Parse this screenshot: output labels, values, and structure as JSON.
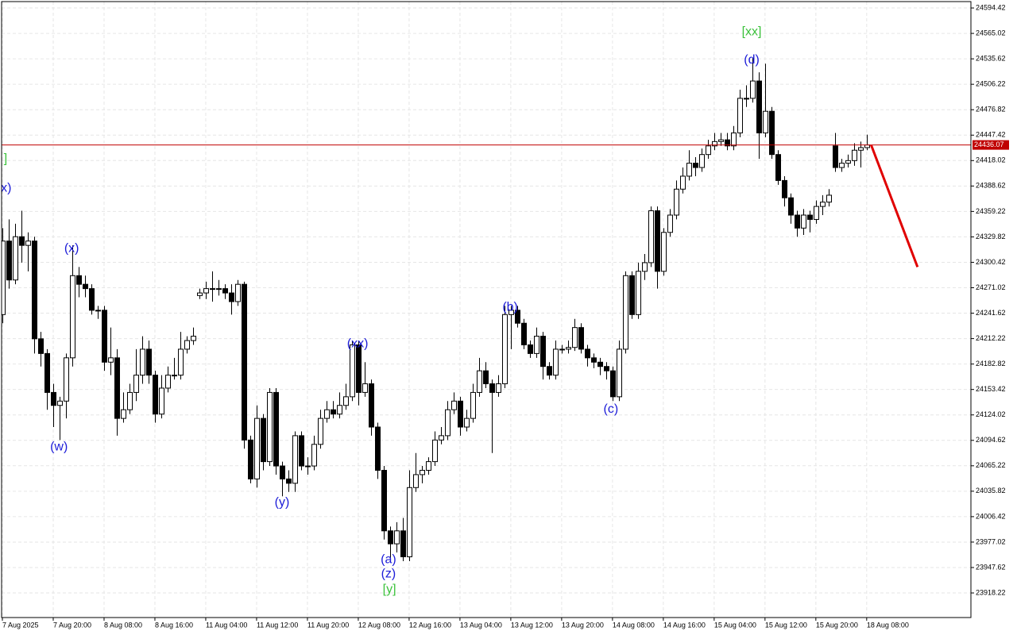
{
  "chart_data": {
    "type": "candlestick",
    "xlim": [
      -0.125,
      152.4
    ],
    "xticks": [
      {
        "value": 0,
        "label": "7 Aug 2025"
      },
      {
        "value": 8,
        "label": "7 Aug 20:00"
      },
      {
        "value": 16,
        "label": "8 Aug 08:00"
      },
      {
        "value": 24,
        "label": "8 Aug 16:00"
      },
      {
        "value": 32,
        "label": "11 Aug 04:00"
      },
      {
        "value": 40,
        "label": "11 Aug 12:00"
      },
      {
        "value": 48,
        "label": "11 Aug 20:00"
      },
      {
        "value": 56,
        "label": "12 Aug 08:00"
      },
      {
        "value": 64,
        "label": "12 Aug 16:00"
      },
      {
        "value": 72,
        "label": "13 Aug 04:00"
      },
      {
        "value": 80,
        "label": "13 Aug 12:00"
      },
      {
        "value": 88,
        "label": "13 Aug 20:00"
      },
      {
        "value": 96,
        "label": "14 Aug 08:00"
      },
      {
        "value": 104,
        "label": "14 Aug 16:00"
      },
      {
        "value": 112,
        "label": "15 Aug 04:00"
      },
      {
        "value": 120,
        "label": "15 Aug 12:00"
      },
      {
        "value": 128,
        "label": "15 Aug 20:00"
      },
      {
        "value": 136,
        "label": "18 Aug 08:00"
      }
    ],
    "ylim": [
      23889.8,
      24601.8
    ],
    "yticks": [
      24594.42,
      24565.02,
      24535.62,
      24506.22,
      24476.82,
      24447.42,
      24418.02,
      24388.62,
      24359.22,
      24329.82,
      24300.42,
      24271.02,
      24241.62,
      24212.22,
      24182.82,
      24153.42,
      24124.02,
      24094.62,
      24065.22,
      24035.82,
      24006.42,
      23977.02,
      23947.62,
      23918.22
    ],
    "grid": true,
    "up_color": "#ffffff",
    "down_color": "#000000",
    "open": [
      24240,
      24325,
      24280,
      24330,
      24320,
      24325,
      24212,
      24195,
      24150,
      24135,
      24140,
      24190,
      24285,
      24275,
      24270,
      24245,
      24245,
      24185,
      24190,
      24120,
      24130,
      24150,
      24170,
      24200,
      24170,
      24125,
      24155,
      24170,
      24170,
      24200,
      24210,
      24262,
      24265,
      24270,
      24270,
      24270,
      24265,
      24255,
      24275,
      24095,
      24050,
      24120,
      24070,
      24150,
      24065,
      24050,
      24045,
      24100,
      24065,
      24065,
      24090,
      24120,
      24130,
      24125,
      24135,
      24145,
      24205,
      24150,
      24160,
      24110,
      24060,
      23990,
      23975,
      23990,
      23960,
      24040,
      24055,
      24060,
      24070,
      24095,
      24100,
      24130,
      24140,
      24110,
      24120,
      24150,
      24175,
      24160,
      24150,
      24160,
      24240,
      24245,
      24230,
      24205,
      24195,
      24215,
      24180,
      24170,
      24200,
      24200,
      24202,
      24225,
      24200,
      24190,
      24185,
      24180,
      24175,
      24145,
      24200,
      24285,
      24240,
      24290,
      24300,
      24360,
      24290,
      24335,
      24355,
      24385,
      24400,
      24415,
      24410,
      24425,
      24435,
      24440,
      24442,
      24435,
      24450,
      24490,
      24490,
      24510,
      24450,
      24475,
      24425,
      24395,
      24375,
      24355,
      24340,
      24355,
      24350,
      24365,
      24370,
      24435,
      24410,
      24415,
      24418,
      24430,
      24433
    ],
    "high": [
      24340,
      24350,
      24345,
      24360,
      24335,
      24330,
      24220,
      24200,
      24160,
      24145,
      24195,
      24320,
      24295,
      24285,
      24275,
      24250,
      24250,
      24225,
      24200,
      24150,
      24160,
      24200,
      24215,
      24210,
      24175,
      24170,
      24180,
      24190,
      24220,
      24215,
      24225,
      24270,
      24278,
      24290,
      24280,
      24275,
      24275,
      24280,
      24278,
      24100,
      24135,
      24125,
      24155,
      24155,
      24070,
      24060,
      24105,
      24105,
      24075,
      24100,
      24130,
      24140,
      24140,
      24150,
      24160,
      24210,
      24210,
      24185,
      24165,
      24115,
      24065,
      23995,
      24000,
      24005,
      24060,
      24080,
      24065,
      24075,
      24105,
      24110,
      24140,
      24150,
      24145,
      24130,
      24160,
      24190,
      24185,
      24165,
      24170,
      24250,
      24250,
      24250,
      24235,
      24210,
      24225,
      24220,
      24185,
      24210,
      24205,
      24210,
      24235,
      24230,
      24205,
      24195,
      24190,
      24185,
      24180,
      24210,
      24290,
      24290,
      24300,
      24310,
      24365,
      24365,
      24340,
      24362,
      24395,
      24410,
      24430,
      24422,
      24432,
      24442,
      24450,
      24450,
      24450,
      24458,
      24500,
      24505,
      24537,
      24520,
      24530,
      24480,
      24430,
      24400,
      24380,
      24360,
      24362,
      24360,
      24372,
      24378,
      24385,
      24450,
      24420,
      24425,
      24438,
      24440,
      24448
    ],
    "low": [
      24230,
      24270,
      24275,
      24300,
      24290,
      24195,
      24180,
      24130,
      24110,
      24095,
      24120,
      24180,
      24260,
      24260,
      24240,
      24235,
      24175,
      24170,
      24100,
      24115,
      24125,
      24140,
      24160,
      24160,
      24115,
      24120,
      24150,
      24165,
      24165,
      24195,
      24205,
      24258,
      24258,
      24255,
      24262,
      24258,
      24240,
      24250,
      24085,
      24045,
      24040,
      24060,
      24065,
      24055,
      24030,
      24035,
      24035,
      24060,
      24055,
      24060,
      24085,
      24115,
      24120,
      24120,
      24130,
      24140,
      24135,
      24145,
      24100,
      24050,
      23980,
      23955,
      23965,
      23955,
      23955,
      24035,
      24045,
      24055,
      24065,
      24090,
      24095,
      24125,
      24100,
      24105,
      24115,
      24145,
      24155,
      24080,
      24145,
      24155,
      24200,
      24225,
      24200,
      24190,
      24190,
      24165,
      24165,
      24165,
      24195,
      24195,
      24198,
      24195,
      24180,
      24178,
      24170,
      24165,
      24140,
      24140,
      24195,
      24235,
      24235,
      24280,
      24295,
      24270,
      24285,
      24330,
      24350,
      24380,
      24395,
      24400,
      24405,
      24420,
      24430,
      24435,
      24430,
      24430,
      24445,
      24480,
      24485,
      24420,
      24445,
      24420,
      24390,
      24365,
      24345,
      24330,
      24332,
      24335,
      24345,
      24355,
      24365,
      24405,
      24405,
      24410,
      24412,
      24410,
      24430
    ],
    "close": [
      24325,
      24280,
      24330,
      24320,
      24325,
      24212,
      24195,
      24150,
      24135,
      24140,
      24190,
      24285,
      24275,
      24270,
      24245,
      24245,
      24185,
      24190,
      24120,
      24130,
      24150,
      24170,
      24200,
      24170,
      24125,
      24155,
      24170,
      24170,
      24200,
      24210,
      24215,
      24265,
      24270,
      24270,
      24270,
      24265,
      24255,
      24275,
      24095,
      24050,
      24120,
      24070,
      24150,
      24065,
      24050,
      24045,
      24100,
      24065,
      24065,
      24090,
      24120,
      24130,
      24125,
      24135,
      24145,
      24205,
      24150,
      24160,
      24110,
      24060,
      23990,
      23975,
      23990,
      23960,
      24040,
      24055,
      24060,
      24070,
      24095,
      24100,
      24130,
      24140,
      24110,
      24120,
      24150,
      24175,
      24160,
      24150,
      24160,
      24240,
      24245,
      24230,
      24205,
      24195,
      24215,
      24180,
      24170,
      24200,
      24200,
      24202,
      24225,
      24200,
      24190,
      24185,
      24180,
      24175,
      24145,
      24200,
      24285,
      24240,
      24290,
      24300,
      24360,
      24290,
      24335,
      24355,
      24385,
      24400,
      24415,
      24410,
      24425,
      24435,
      24440,
      24442,
      24435,
      24450,
      24490,
      24490,
      24510,
      24450,
      24475,
      24425,
      24395,
      24375,
      24355,
      24340,
      24355,
      24350,
      24365,
      24370,
      24378,
      24410,
      24415,
      24418,
      24430,
      24433,
      24436.07
    ],
    "current_price": 24436.07,
    "current_price_color": "#c00000",
    "forecast": {
      "color": "#e00000",
      "x": [
        136.7,
        144
      ],
      "values": [
        24436.07,
        24295
      ]
    },
    "annotations": [
      {
        "text": "]",
        "color": "#3cc23c",
        "x": 0.5,
        "y": 24420.1
      },
      {
        "text": "x)",
        "color": "#1c1cd8",
        "x": 0.6,
        "y": 24386.1
      },
      {
        "text": "(x)",
        "color": "#1c1cd8",
        "x": 10.9,
        "y": 24316.4
      },
      {
        "text": "(w)",
        "color": "#1c1cd8",
        "x": 8.9,
        "y": 24087.0
      },
      {
        "text": "(y)",
        "color": "#1c1cd8",
        "x": 44,
        "y": 24022.8
      },
      {
        "text": "(xx)",
        "color": "#1c1cd8",
        "x": 55.9,
        "y": 24206.3
      },
      {
        "text": "(a)",
        "color": "#1c1cd8",
        "x": 60.75,
        "y": 23956.7
      },
      {
        "text": "(z)",
        "color": "#1c1cd8",
        "x": 60.75,
        "y": 23940.2
      },
      {
        "text": "[y]",
        "color": "#3cc23c",
        "x": 60.9,
        "y": 23921.9
      },
      {
        "text": "(b)",
        "color": "#1c1cd8",
        "x": 79.9,
        "y": 24248.5
      },
      {
        "text": "(c)",
        "color": "#1c1cd8",
        "x": 95.75,
        "y": 24130.2
      },
      {
        "text": "(d)",
        "color": "#1c1cd8",
        "x": 117.9,
        "y": 24533.9
      },
      {
        "text": "[xx]",
        "color": "#3cc23c",
        "x": 117.9,
        "y": 24566.9
      }
    ]
  }
}
